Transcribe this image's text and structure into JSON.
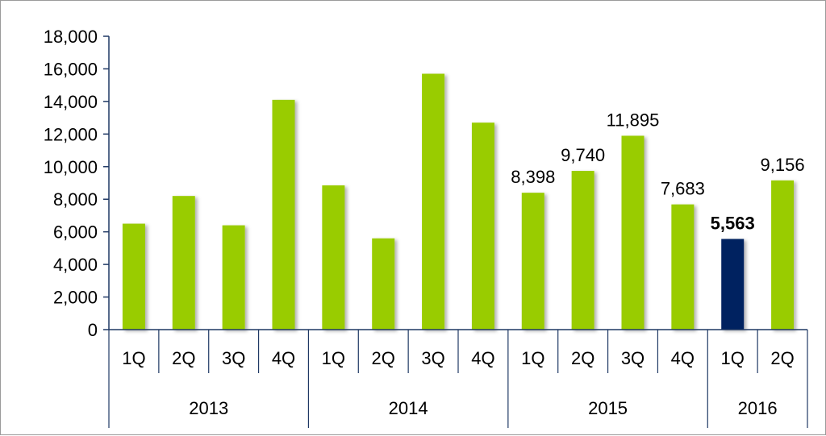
{
  "chart_data": {
    "type": "bar",
    "title": "",
    "xlabel": "",
    "ylabel": "",
    "ylim": [
      0,
      18000
    ],
    "yticks": [
      0,
      2000,
      4000,
      6000,
      8000,
      10000,
      12000,
      14000,
      16000,
      18000
    ],
    "ytick_labels": [
      "0",
      "2,000",
      "4,000",
      "6,000",
      "8,000",
      "10,000",
      "12,000",
      "14,000",
      "16,000",
      "18,000"
    ],
    "grid": false,
    "legend": "none",
    "categories": [
      "1Q",
      "2Q",
      "3Q",
      "4Q",
      "1Q",
      "2Q",
      "3Q",
      "4Q",
      "1Q",
      "2Q",
      "3Q",
      "4Q",
      "1Q",
      "2Q"
    ],
    "years": [
      {
        "label": "2013",
        "count": 4
      },
      {
        "label": "2014",
        "count": 4
      },
      {
        "label": "2015",
        "count": 4
      },
      {
        "label": "2016",
        "count": 2
      }
    ],
    "values": [
      6500,
      8200,
      6400,
      14100,
      8850,
      5600,
      15700,
      12700,
      8398,
      9740,
      11895,
      7683,
      5563,
      9156
    ],
    "data_labels": [
      null,
      null,
      null,
      null,
      null,
      null,
      null,
      null,
      "8,398",
      "9,740",
      "11,895",
      "7,683",
      "5,563",
      "9,156"
    ],
    "highlight_index": 12,
    "colors": {
      "bar": "#99cc00",
      "highlight": "#002060",
      "axis": "#1f3864"
    }
  }
}
